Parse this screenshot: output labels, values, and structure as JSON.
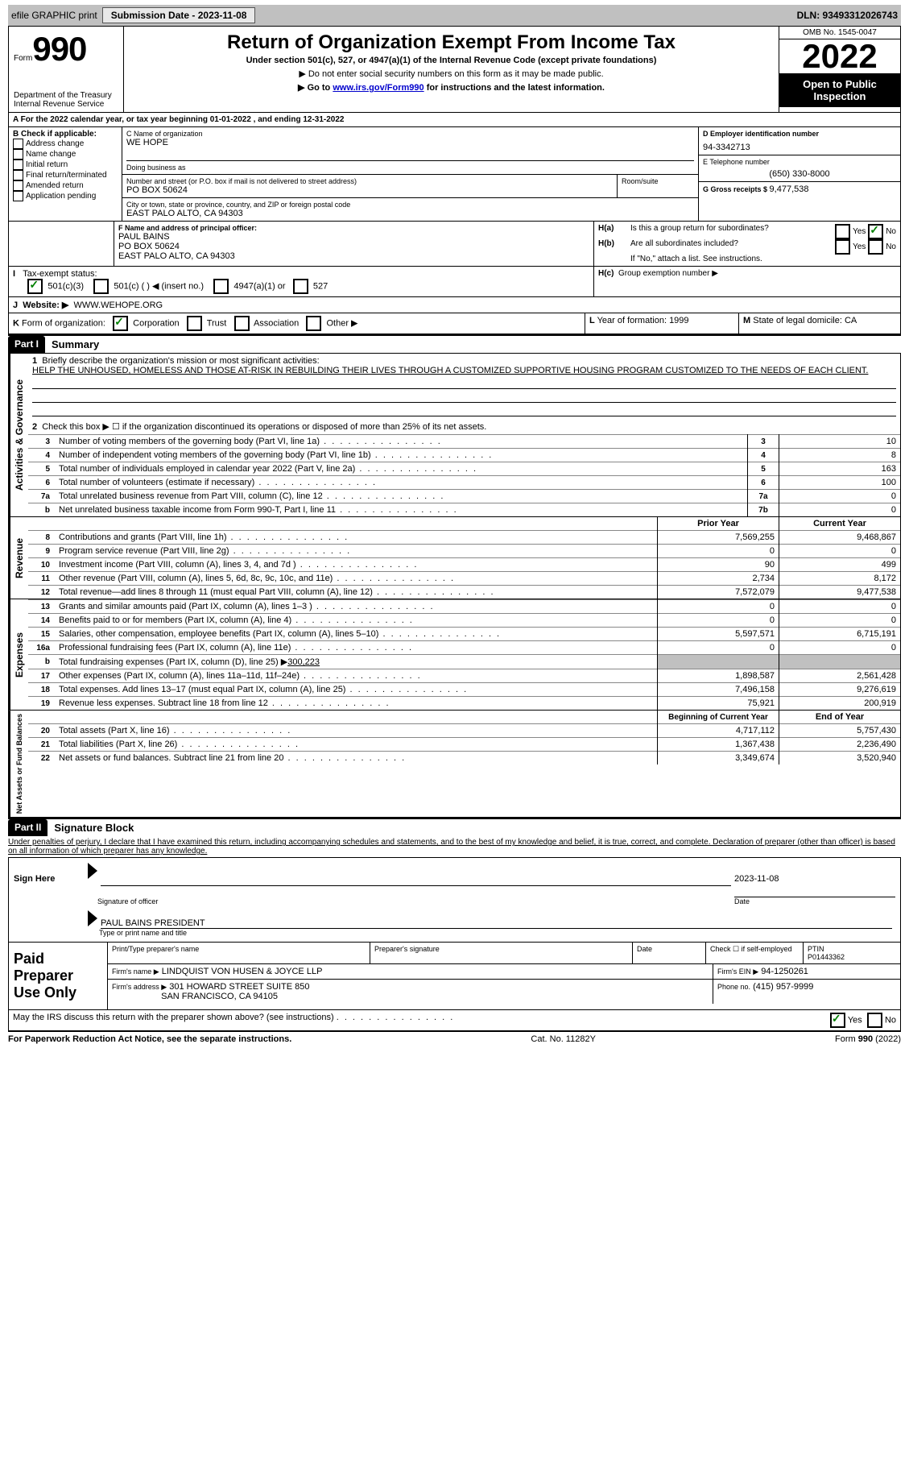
{
  "topbar": {
    "efile": "efile GRAPHIC print",
    "submission_label": "Submission Date - 2023-11-08",
    "dln_label": "DLN: 93493312026743"
  },
  "header": {
    "form_word": "Form",
    "form_num": "990",
    "dept": "Department of the Treasury",
    "irs": "Internal Revenue Service",
    "title": "Return of Organization Exempt From Income Tax",
    "subtitle": "Under section 501(c), 527, or 4947(a)(1) of the Internal Revenue Code (except private foundations)",
    "note1": "▶ Do not enter social security numbers on this form as it may be made public.",
    "note2_pre": "▶ Go to ",
    "note2_link": "www.irs.gov/Form990",
    "note2_post": " for instructions and the latest information.",
    "omb": "OMB No. 1545-0047",
    "year": "2022",
    "inspection": "Open to Public Inspection"
  },
  "line_a": "For the 2022 calendar year, or tax year beginning 01-01-2022   , and ending 12-31-2022",
  "box_b": {
    "title": "B Check if applicable:",
    "opts": [
      "Address change",
      "Name change",
      "Initial return",
      "Final return/terminated",
      "Amended return",
      "Application pending"
    ]
  },
  "box_c": {
    "label": "C Name of organization",
    "name": "WE HOPE",
    "dba_label": "Doing business as",
    "addr_label": "Number and street (or P.O. box if mail is not delivered to street address)",
    "room_label": "Room/suite",
    "addr": "PO BOX 50624",
    "city_label": "City or town, state or province, country, and ZIP or foreign postal code",
    "city": "EAST PALO ALTO, CA  94303"
  },
  "box_d": {
    "label": "D Employer identification number",
    "val": "94-3342713"
  },
  "box_e": {
    "label": "E Telephone number",
    "val": "(650) 330-8000"
  },
  "box_g": {
    "label": "G Gross receipts $ ",
    "val": "9,477,538"
  },
  "box_f": {
    "label": "F   Name and address of principal officer:",
    "name": "PAUL BAINS",
    "addr1": "PO BOX 50624",
    "addr2": "EAST PALO ALTO, CA  94303"
  },
  "box_h": {
    "a": "Is this a group return for subordinates?",
    "b": "Are all subordinates included?",
    "note": "If \"No,\" attach a list. See instructions.",
    "c": "Group exemption number ▶"
  },
  "box_i": {
    "label": "Tax-exempt status:",
    "o1": "501(c)(3)",
    "o2": "501(c) (  ) ◀ (insert no.)",
    "o3": "4947(a)(1) or",
    "o4": "527"
  },
  "box_j": {
    "label": "Website: ▶",
    "val": "WWW.WEHOPE.ORG"
  },
  "box_k": {
    "label": "Form of organization:",
    "o1": "Corporation",
    "o2": "Trust",
    "o3": "Association",
    "o4": "Other ▶"
  },
  "box_l": {
    "label": "Year of formation: ",
    "val": "1999"
  },
  "box_m": {
    "label": "State of legal domicile: ",
    "val": "CA"
  },
  "part1": {
    "num": "Part I",
    "title": "Summary"
  },
  "summary": {
    "line1_label": "Briefly describe the organization's mission or most significant activities:",
    "mission": "HELP THE UNHOUSED, HOMELESS AND THOSE AT-RISK IN REBUILDING THEIR LIVES THROUGH A CUSTOMIZED SUPPORTIVE HOUSING PROGRAM CUSTOMIZED TO THE NEEDS OF EACH CLIENT.",
    "line2": "Check this box ▶ ☐  if the organization discontinued its operations or disposed of more than 25% of its net assets.",
    "rows_top": [
      {
        "n": "3",
        "t": "Number of voting members of the governing body (Part VI, line 1a)",
        "box": "3",
        "v": "10"
      },
      {
        "n": "4",
        "t": "Number of independent voting members of the governing body (Part VI, line 1b)",
        "box": "4",
        "v": "8"
      },
      {
        "n": "5",
        "t": "Total number of individuals employed in calendar year 2022 (Part V, line 2a)",
        "box": "5",
        "v": "163"
      },
      {
        "n": "6",
        "t": "Total number of volunteers (estimate if necessary)",
        "box": "6",
        "v": "100"
      },
      {
        "n": "7a",
        "t": "Total unrelated business revenue from Part VIII, column (C), line 12",
        "box": "7a",
        "v": "0"
      },
      {
        "n": "b",
        "t": "Net unrelated business taxable income from Form 990-T, Part I, line 11",
        "box": "7b",
        "v": "0"
      }
    ],
    "col_prior": "Prior Year",
    "col_current": "Current Year",
    "rev_rows": [
      {
        "n": "8",
        "t": "Contributions and grants (Part VIII, line 1h)",
        "p": "7,569,255",
        "c": "9,468,867"
      },
      {
        "n": "9",
        "t": "Program service revenue (Part VIII, line 2g)",
        "p": "0",
        "c": "0"
      },
      {
        "n": "10",
        "t": "Investment income (Part VIII, column (A), lines 3, 4, and 7d )",
        "p": "90",
        "c": "499"
      },
      {
        "n": "11",
        "t": "Other revenue (Part VIII, column (A), lines 5, 6d, 8c, 9c, 10c, and 11e)",
        "p": "2,734",
        "c": "8,172"
      },
      {
        "n": "12",
        "t": "Total revenue—add lines 8 through 11 (must equal Part VIII, column (A), line 12)",
        "p": "7,572,079",
        "c": "9,477,538"
      }
    ],
    "exp_rows": [
      {
        "n": "13",
        "t": "Grants and similar amounts paid (Part IX, column (A), lines 1–3 )",
        "p": "0",
        "c": "0"
      },
      {
        "n": "14",
        "t": "Benefits paid to or for members (Part IX, column (A), line 4)",
        "p": "0",
        "c": "0"
      },
      {
        "n": "15",
        "t": "Salaries, other compensation, employee benefits (Part IX, column (A), lines 5–10)",
        "p": "5,597,571",
        "c": "6,715,191"
      },
      {
        "n": "16a",
        "t": "Professional fundraising fees (Part IX, column (A), line 11e)",
        "p": "0",
        "c": "0"
      }
    ],
    "line_b_pre": "Total fundraising expenses (Part IX, column (D), line 25) ▶",
    "line_b_val": "300,223",
    "exp_rows2": [
      {
        "n": "17",
        "t": "Other expenses (Part IX, column (A), lines 11a–11d, 11f–24e)",
        "p": "1,898,587",
        "c": "2,561,428"
      },
      {
        "n": "18",
        "t": "Total expenses. Add lines 13–17 (must equal Part IX, column (A), line 25)",
        "p": "7,496,158",
        "c": "9,276,619"
      },
      {
        "n": "19",
        "t": "Revenue less expenses. Subtract line 18 from line 12",
        "p": "75,921",
        "c": "200,919"
      }
    ],
    "col_begin": "Beginning of Current Year",
    "col_end": "End of Year",
    "net_rows": [
      {
        "n": "20",
        "t": "Total assets (Part X, line 16)",
        "p": "4,717,112",
        "c": "5,757,430"
      },
      {
        "n": "21",
        "t": "Total liabilities (Part X, line 26)",
        "p": "1,367,438",
        "c": "2,236,490"
      },
      {
        "n": "22",
        "t": "Net assets or fund balances. Subtract line 21 from line 20",
        "p": "3,349,674",
        "c": "3,520,940"
      }
    ],
    "side_gov": "Activities & Governance",
    "side_rev": "Revenue",
    "side_exp": "Expenses",
    "side_net": "Net Assets or Fund Balances"
  },
  "part2": {
    "num": "Part II",
    "title": "Signature Block"
  },
  "sig": {
    "declaration": "Under penalties of perjury, I declare that I have examined this return, including accompanying schedules and statements, and to the best of my knowledge and belief, it is true, correct, and complete. Declaration of preparer (other than officer) is based on all information of which preparer has any knowledge.",
    "sign_here": "Sign Here",
    "sig_officer": "Signature of officer",
    "date": "Date",
    "date_val": "2023-11-08",
    "name_title": "PAUL BAINS  PRESIDENT",
    "type_name": "Type or print name and title",
    "paid": "Paid Preparer Use Only",
    "print_name": "Print/Type preparer's name",
    "prep_sig": "Preparer's signature",
    "check_label": "Check ☐ if self-employed",
    "ptin_label": "PTIN",
    "ptin": "P01443362",
    "firm_name_label": "Firm's name    ▶",
    "firm_name": "LINDQUIST VON HUSEN & JOYCE LLP",
    "firm_ein_label": "Firm's EIN ▶",
    "firm_ein": "94-1250261",
    "firm_addr_label": "Firm's address ▶",
    "firm_addr1": "301 HOWARD STREET SUITE 850",
    "firm_addr2": "SAN FRANCISCO, CA  94105",
    "phone_label": "Phone no.",
    "phone": "(415) 957-9999",
    "discuss": "May the IRS discuss this return with the preparer shown above? (see instructions)"
  },
  "footer": {
    "left": "For Paperwork Reduction Act Notice, see the separate instructions.",
    "mid": "Cat. No. 11282Y",
    "right": "Form 990 (2022)"
  },
  "yes": "Yes",
  "no": "No"
}
